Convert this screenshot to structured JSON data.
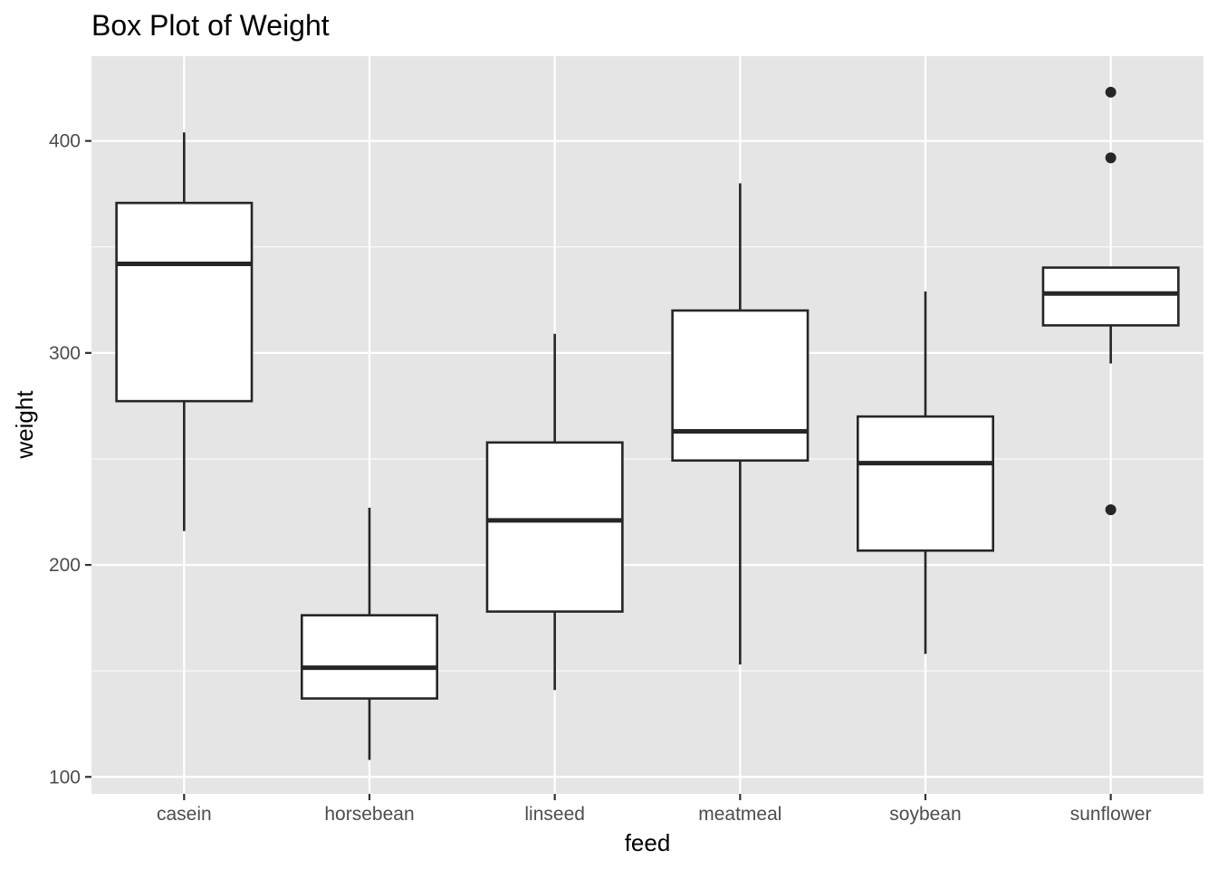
{
  "chart_data": {
    "type": "boxplot",
    "title": "Box Plot of Weight",
    "xlabel": "feed",
    "ylabel": "weight",
    "ylim": [
      92,
      440
    ],
    "yticks": [
      100,
      200,
      300,
      400
    ],
    "grid": true,
    "categories": [
      "casein",
      "horsebean",
      "linseed",
      "meatmeal",
      "soybean",
      "sunflower"
    ],
    "boxes": [
      {
        "category": "casein",
        "whisker_low": 216,
        "q1": 277.25,
        "median": 342,
        "q3": 370.75,
        "whisker_high": 404,
        "outliers": []
      },
      {
        "category": "horsebean",
        "whisker_low": 108,
        "q1": 137,
        "median": 151.5,
        "q3": 176.25,
        "whisker_high": 227,
        "outliers": []
      },
      {
        "category": "linseed",
        "whisker_low": 141,
        "q1": 178,
        "median": 221,
        "q3": 257.75,
        "whisker_high": 309,
        "outliers": []
      },
      {
        "category": "meatmeal",
        "whisker_low": 153,
        "q1": 249.25,
        "median": 263,
        "q3": 320,
        "whisker_high": 380,
        "outliers": []
      },
      {
        "category": "soybean",
        "whisker_low": 158,
        "q1": 206.75,
        "median": 248,
        "q3": 270,
        "whisker_high": 329,
        "outliers": []
      },
      {
        "category": "sunflower",
        "whisker_low": 295,
        "q1": 313,
        "median": 328,
        "q3": 340.25,
        "whisker_high": 340.25,
        "outliers": [
          423,
          392,
          226
        ]
      }
    ],
    "colors": {
      "panel_bg": "#e5e5e5",
      "grid": "#ffffff",
      "box_fill": "#ffffff",
      "box_stroke": "#262626",
      "outlier": "#262626"
    }
  }
}
